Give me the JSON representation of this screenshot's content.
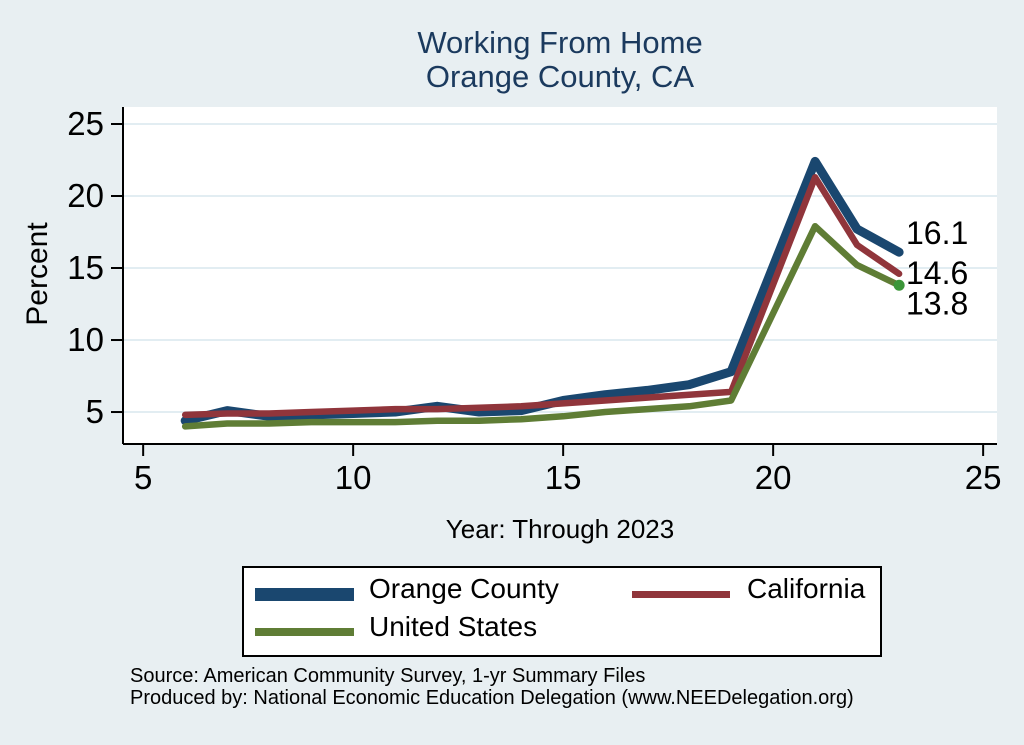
{
  "title": {
    "line1": "Working From Home",
    "line2": "Orange County, CA"
  },
  "colors": {
    "background": "#e8eff2",
    "plot_background": "#ffffff",
    "gridline": "#e2edf2",
    "axis": "#000000",
    "title_text": "#1b3a5e",
    "tick_text": "#000000",
    "orange_county": "#1a476f",
    "california": "#90353b",
    "united_states": "#5f7d35",
    "end_marker": "#3c9639"
  },
  "chart_data": {
    "type": "line",
    "title": "Working From Home Orange County, CA",
    "xlabel": "Year: Through 2023",
    "ylabel": "Percent",
    "grid": true,
    "legend_position": "bottom",
    "x_ticks": [
      5,
      10,
      15,
      20,
      25
    ],
    "y_ticks": [
      5,
      10,
      15,
      20,
      25
    ],
    "xlim": [
      4.52,
      25.33
    ],
    "ylim": [
      2.78,
      26.18
    ],
    "x": [
      6,
      7,
      8,
      9,
      10,
      11,
      12,
      13,
      14,
      15,
      16,
      17,
      18,
      19,
      21,
      22,
      23
    ],
    "series": [
      {
        "name": "Orange County",
        "color": "#1a476f",
        "line_width": 9,
        "values": [
          4.4,
          5.1,
          4.7,
          4.8,
          4.9,
          5.0,
          5.4,
          5.0,
          5.1,
          5.8,
          6.2,
          6.5,
          6.9,
          7.8,
          22.4,
          17.7,
          16.1
        ]
      },
      {
        "name": "California",
        "color": "#90353b",
        "line_width": 6.5,
        "values": [
          4.8,
          4.9,
          4.9,
          5.0,
          5.1,
          5.2,
          5.2,
          5.3,
          5.4,
          5.6,
          5.8,
          6.0,
          6.2,
          6.4,
          21.3,
          16.6,
          14.6
        ]
      },
      {
        "name": "United States",
        "color": "#5f7d35",
        "line_width": 6.5,
        "end_marker": true,
        "end_marker_color": "#3c9639",
        "values": [
          4.0,
          4.2,
          4.2,
          4.3,
          4.3,
          4.3,
          4.4,
          4.4,
          4.5,
          4.7,
          5.0,
          5.2,
          5.4,
          5.8,
          17.9,
          15.2,
          13.8
        ]
      }
    ],
    "end_labels": [
      {
        "text": "16.1",
        "series": "Orange County"
      },
      {
        "text": "14.6",
        "series": "California"
      },
      {
        "text": "13.8",
        "series": "United States"
      }
    ]
  },
  "legend": {
    "items": [
      {
        "label": "Orange County",
        "color": "#1a476f"
      },
      {
        "label": "California",
        "color": "#90353b"
      },
      {
        "label": "United States",
        "color": "#5f7d35"
      }
    ]
  },
  "footer": {
    "line1": "Source: American Community Survey, 1-yr Summary Files",
    "line2": "Produced by: National Economic Education Delegation (www.NEEDelegation.org)"
  }
}
